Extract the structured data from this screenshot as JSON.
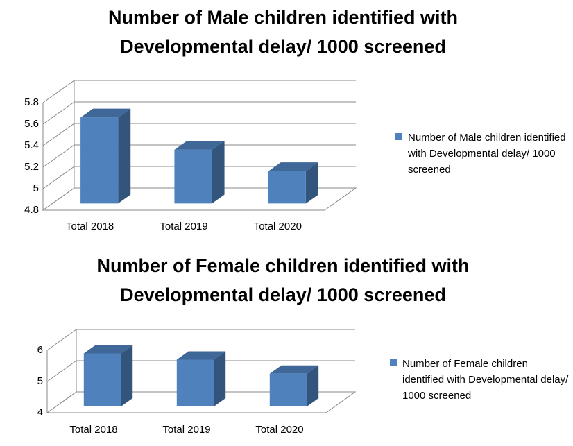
{
  "chart_data": [
    {
      "type": "bar3d",
      "title": "Number of Male children identified with Developmental delay/ 1000 screened",
      "categories": [
        "Total 2018",
        "Total 2019",
        "Total 2020"
      ],
      "series": [
        {
          "name": "Number of Male children identified with Developmental delay/ 1000 screened",
          "color": "#4f81bd",
          "values": [
            5.6,
            5.3,
            5.1
          ]
        }
      ],
      "ylim": [
        4.8,
        5.8
      ],
      "yticks": [
        4.8,
        5,
        5.2,
        5.4,
        5.6,
        5.8
      ],
      "grid": true,
      "legend": "right"
    },
    {
      "type": "bar3d",
      "title": "Number of Female children identified with Developmental delay/ 1000 screened",
      "categories": [
        "Total 2018",
        "Total 2019",
        "Total 2020"
      ],
      "series": [
        {
          "name": "Number of Female children identified with Developmental delay/ 1000 screened",
          "color": "#4f81bd",
          "values": [
            5.7,
            5.5,
            5.05
          ]
        }
      ],
      "ylim": [
        4,
        6
      ],
      "yticks": [
        4,
        5,
        6
      ],
      "grid": true,
      "legend": "right"
    }
  ]
}
